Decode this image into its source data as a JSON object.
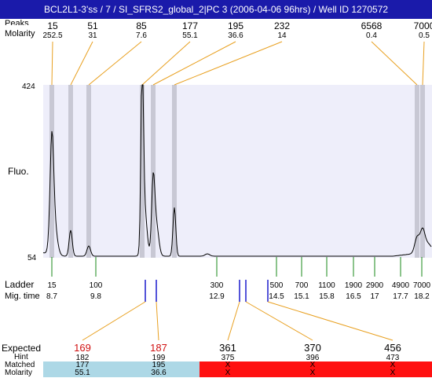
{
  "title": "BCL2L1-3'ss / 7 / SI_SFRS2_global_2|PC 3 (2006-04-06 96hrs) / Well ID 1270572",
  "labels": {
    "peaks": "Peaks",
    "molarity": "Molarity",
    "fluo": "Fluo.",
    "ladder": "Ladder",
    "mig_time": "Mig. time",
    "expected": "Expected",
    "hint": "Hint",
    "matched": "Matched",
    "molarity_bottom": "Molarity"
  },
  "colors": {
    "title_bg": "#1a1aaa",
    "plot_bg": "#eeeefa",
    "peak_band": "#c8c8d4",
    "connector": "#e8a020",
    "ladder_tick": "#1a8a1a",
    "expected_mark": "#1a1acc",
    "expected_label": "#d01010",
    "matched_bg": "#add8e6",
    "unmatched_bg": "#ff1010"
  },
  "chart_data": {
    "type": "line",
    "y_axis": {
      "min": 54,
      "max": 424,
      "label": "Fluo."
    },
    "top_peaks": [
      {
        "size": "15",
        "molarity": "252.5"
      },
      {
        "size": "51",
        "molarity": "31"
      },
      {
        "size": "85",
        "molarity": "7.6"
      },
      {
        "size": "177",
        "molarity": "55.1"
      },
      {
        "size": "195",
        "molarity": "36.6"
      },
      {
        "size": "232",
        "molarity": "14"
      },
      {
        "size": "6568",
        "molarity": "0.4"
      },
      {
        "size": "7000",
        "molarity": "0.5"
      }
    ],
    "ladder": [
      {
        "size": "15",
        "time": "8.7"
      },
      {
        "size": "100",
        "time": "9.8"
      },
      {
        "size": "300",
        "time": "12.9"
      },
      {
        "size": "500",
        "time": "14.5"
      },
      {
        "size": "700",
        "time": "15.1"
      },
      {
        "size": "1100",
        "time": "15.8"
      },
      {
        "size": "1900",
        "time": "16.5"
      },
      {
        "size": "2900",
        "time": "17"
      },
      {
        "size": "4900",
        "time": "17.7"
      },
      {
        "size": "7000",
        "time": "18.2"
      }
    ],
    "expected": [
      {
        "expected": "169",
        "hint": "182",
        "matched": "177",
        "molarity": "55.1",
        "is_matched": true
      },
      {
        "expected": "187",
        "hint": "199",
        "matched": "195",
        "molarity": "36.6",
        "is_matched": true
      },
      {
        "expected": "361",
        "hint": "375",
        "matched": "X",
        "molarity": "X",
        "is_matched": false
      },
      {
        "expected": "370",
        "hint": "396",
        "matched": "X",
        "molarity": "X",
        "is_matched": false
      },
      {
        "expected": "456",
        "hint": "473",
        "matched": "X",
        "molarity": "X",
        "is_matched": false
      }
    ]
  }
}
